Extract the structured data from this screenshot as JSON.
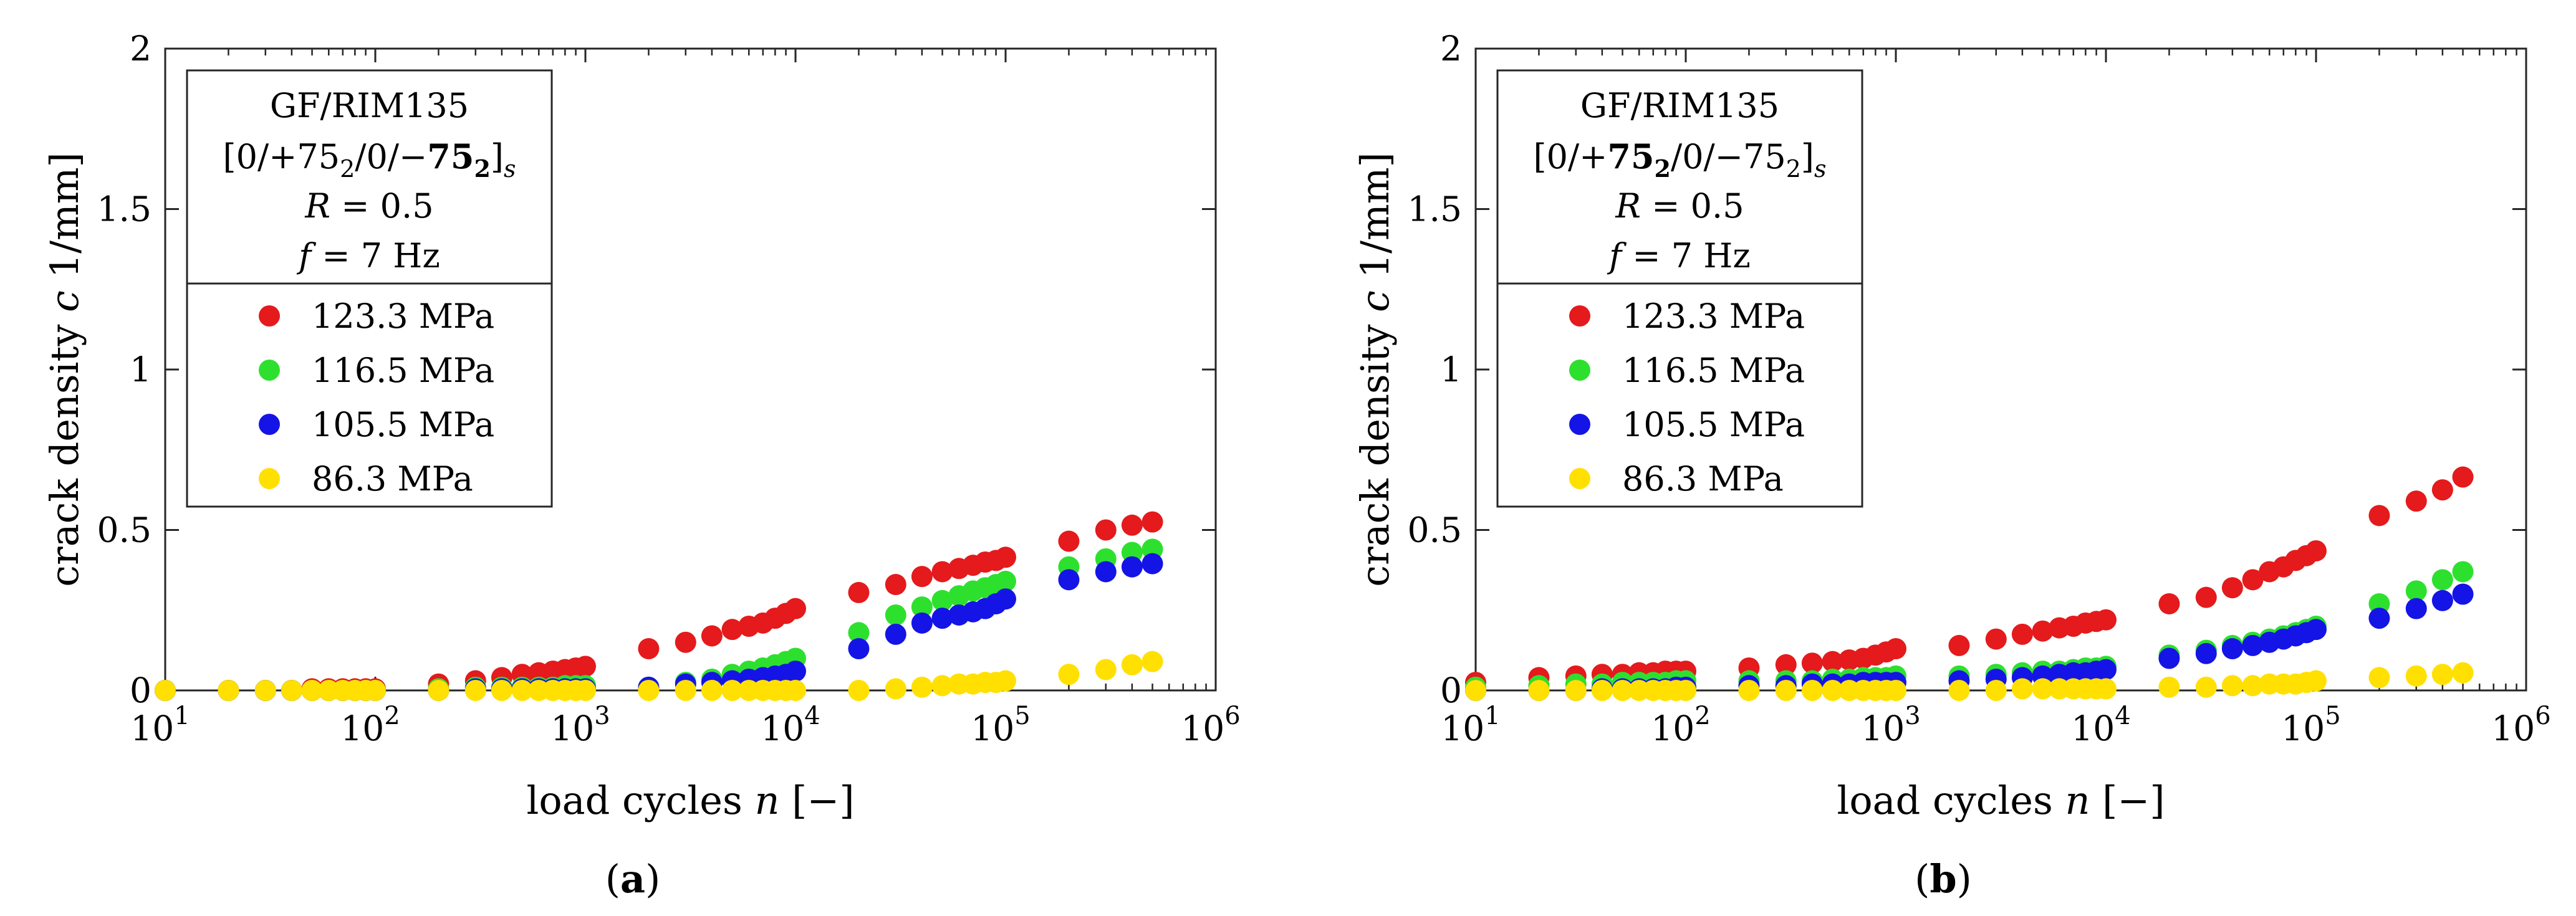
{
  "chart_data": [
    {
      "type": "scatter",
      "caption_letter": "a",
      "xscale": "log",
      "xlim": [
        10,
        1000000
      ],
      "ylim": [
        0,
        2
      ],
      "xticks": [
        10,
        100,
        1000,
        10000,
        100000,
        1000000
      ],
      "xtick_labels": [
        {
          "base": "10",
          "exp": "1"
        },
        {
          "base": "10",
          "exp": "2"
        },
        {
          "base": "10",
          "exp": "3"
        },
        {
          "base": "10",
          "exp": "4"
        },
        {
          "base": "10",
          "exp": "5"
        },
        {
          "base": "10",
          "exp": "6"
        }
      ],
      "yticks": [
        0,
        0.5,
        1,
        1.5,
        2
      ],
      "ytick_labels": [
        "0",
        "0.5",
        "1",
        "1.5",
        "2"
      ],
      "xlabel": {
        "prefix": "load cycles ",
        "var": "n",
        "suffix": " [−]"
      },
      "ylabel": {
        "prefix": "crack density ",
        "var": "c",
        "suffix": "  1/mm]"
      },
      "legend": {
        "placement": "top-left",
        "material": "GF/RIM135",
        "layup": {
          "open": "[0/+75",
          "sub1": "2",
          "mid": "/0/−",
          "bold": "75",
          "sub2": "2",
          "close": "]",
          "subs": "s",
          "bold_index": 2
        },
        "ratio": {
          "var": "R",
          "value": " = 0.5"
        },
        "freq": {
          "var": "f",
          "value": " = 7 Hz"
        }
      },
      "x": [
        10,
        20,
        30,
        40,
        50,
        60,
        70,
        80,
        90,
        100,
        200,
        300,
        400,
        500,
        600,
        700,
        800,
        900,
        1000,
        2000,
        3000,
        4000,
        5000,
        6000,
        7000,
        8000,
        9000,
        10000,
        20000,
        30000,
        40000,
        50000,
        60000,
        70000,
        80000,
        90000,
        100000,
        200000,
        300000,
        400000,
        500000
      ],
      "series": [
        {
          "name": "123.3 MPa",
          "color": "#e41a1c",
          "values": [
            0,
            0,
            0,
            0,
            0.005,
            0.005,
            0.005,
            0.005,
            0.005,
            0.005,
            0.02,
            0.03,
            0.04,
            0.05,
            0.055,
            0.06,
            0.065,
            0.07,
            0.075,
            0.13,
            0.15,
            0.17,
            0.19,
            0.2,
            0.21,
            0.225,
            0.24,
            0.255,
            0.305,
            0.33,
            0.355,
            0.37,
            0.38,
            0.39,
            0.4,
            0.405,
            0.415,
            0.465,
            0.5,
            0.515,
            0.525
          ]
        },
        {
          "name": "116.5 MPa",
          "color": "#2ee02e",
          "values": [
            0,
            0,
            0,
            0,
            0,
            0,
            0,
            0,
            0,
            0,
            0.005,
            0.01,
            0.01,
            0.01,
            0.01,
            0.01,
            0.015,
            0.015,
            0.015,
            0.01,
            0.025,
            0.035,
            0.05,
            0.06,
            0.07,
            0.08,
            0.09,
            0.1,
            0.18,
            0.235,
            0.26,
            0.28,
            0.295,
            0.31,
            0.32,
            0.33,
            0.34,
            0.385,
            0.41,
            0.43,
            0.44
          ]
        },
        {
          "name": "105.5 MPa",
          "color": "#1414e6",
          "values": [
            0,
            0,
            0,
            0,
            0,
            0,
            0,
            0,
            0,
            0,
            0,
            0.005,
            0.005,
            0.005,
            0.005,
            0.005,
            0.005,
            0.005,
            0.005,
            0.01,
            0.02,
            0.025,
            0.03,
            0.035,
            0.04,
            0.045,
            0.05,
            0.06,
            0.13,
            0.175,
            0.21,
            0.225,
            0.235,
            0.245,
            0.255,
            0.27,
            0.285,
            0.345,
            0.37,
            0.385,
            0.395
          ]
        },
        {
          "name": "86.3 MPa",
          "color": "#ffe000",
          "values": [
            0,
            0,
            0,
            0,
            0,
            0,
            0,
            0,
            0,
            0,
            0,
            0,
            0,
            0,
            0,
            0,
            0,
            0,
            0,
            0,
            0,
            0,
            0,
            0,
            0,
            0,
            0,
            0,
            0,
            0.005,
            0.01,
            0.015,
            0.02,
            0.02,
            0.025,
            0.025,
            0.03,
            0.05,
            0.065,
            0.08,
            0.09
          ]
        }
      ]
    },
    {
      "type": "scatter",
      "caption_letter": "b",
      "xscale": "log",
      "xlim": [
        10,
        1000000
      ],
      "ylim": [
        0,
        2
      ],
      "xticks": [
        10,
        100,
        1000,
        10000,
        100000,
        1000000
      ],
      "xtick_labels": [
        {
          "base": "10",
          "exp": "1"
        },
        {
          "base": "10",
          "exp": "2"
        },
        {
          "base": "10",
          "exp": "3"
        },
        {
          "base": "10",
          "exp": "4"
        },
        {
          "base": "10",
          "exp": "5"
        },
        {
          "base": "10",
          "exp": "6"
        }
      ],
      "yticks": [
        0,
        0.5,
        1,
        1.5,
        2
      ],
      "ytick_labels": [
        "0",
        "0.5",
        "1",
        "1.5",
        "2"
      ],
      "xlabel": {
        "prefix": "load cycles ",
        "var": "n",
        "suffix": " [−]"
      },
      "ylabel": {
        "prefix": "crack density ",
        "var": "c",
        "suffix": "  1/mm]"
      },
      "legend": {
        "placement": "top-left",
        "material": "GF/RIM135",
        "layup": {
          "open": "[0/+",
          "bold": "75",
          "sub2": "2",
          "mid": "/0/−75",
          "sub1": "2",
          "close": "]",
          "subs": "s",
          "bold_index": 1
        },
        "ratio": {
          "var": "R",
          "value": " = 0.5"
        },
        "freq": {
          "var": "f",
          "value": " = 7 Hz"
        }
      },
      "x": [
        10,
        20,
        30,
        40,
        50,
        60,
        70,
        80,
        90,
        100,
        200,
        300,
        400,
        500,
        600,
        700,
        800,
        900,
        1000,
        2000,
        3000,
        4000,
        5000,
        6000,
        7000,
        8000,
        9000,
        10000,
        20000,
        30000,
        40000,
        50000,
        60000,
        70000,
        80000,
        90000,
        100000,
        200000,
        300000,
        400000,
        500000
      ],
      "series": [
        {
          "name": "123.3 MPa",
          "color": "#e41a1c",
          "values": [
            0.025,
            0.04,
            0.045,
            0.05,
            0.05,
            0.055,
            0.055,
            0.06,
            0.06,
            0.06,
            0.07,
            0.08,
            0.085,
            0.09,
            0.095,
            0.1,
            0.11,
            0.12,
            0.13,
            0.14,
            0.16,
            0.175,
            0.185,
            0.195,
            0.2,
            0.21,
            0.215,
            0.22,
            0.27,
            0.29,
            0.32,
            0.345,
            0.37,
            0.385,
            0.405,
            0.42,
            0.435,
            0.545,
            0.59,
            0.625,
            0.665
          ]
        },
        {
          "name": "116.5 MPa",
          "color": "#2ee02e",
          "values": [
            0.01,
            0.015,
            0.02,
            0.02,
            0.025,
            0.025,
            0.025,
            0.025,
            0.03,
            0.03,
            0.03,
            0.03,
            0.03,
            0.035,
            0.035,
            0.04,
            0.04,
            0.04,
            0.045,
            0.045,
            0.05,
            0.055,
            0.06,
            0.06,
            0.065,
            0.07,
            0.07,
            0.075,
            0.11,
            0.125,
            0.14,
            0.15,
            0.16,
            0.17,
            0.18,
            0.19,
            0.2,
            0.27,
            0.31,
            0.345,
            0.37
          ]
        },
        {
          "name": "105.5 MPa",
          "color": "#1414e6",
          "values": [
            0,
            0,
            0,
            0.005,
            0.005,
            0.005,
            0.005,
            0.005,
            0.01,
            0.01,
            0.015,
            0.015,
            0.02,
            0.02,
            0.02,
            0.025,
            0.025,
            0.025,
            0.025,
            0.03,
            0.035,
            0.04,
            0.045,
            0.05,
            0.055,
            0.055,
            0.06,
            0.065,
            0.1,
            0.115,
            0.13,
            0.14,
            0.15,
            0.16,
            0.17,
            0.18,
            0.19,
            0.225,
            0.255,
            0.28,
            0.3
          ]
        },
        {
          "name": "86.3 MPa",
          "color": "#ffe000",
          "values": [
            0,
            0,
            0,
            0,
            0,
            0,
            0,
            0,
            0,
            0,
            0,
            0,
            0,
            0,
            0,
            0,
            0,
            0,
            0,
            0,
            0,
            0.005,
            0.005,
            0.005,
            0.005,
            0.005,
            0.005,
            0.005,
            0.01,
            0.01,
            0.015,
            0.015,
            0.02,
            0.02,
            0.02,
            0.025,
            0.03,
            0.04,
            0.045,
            0.05,
            0.055
          ]
        }
      ]
    }
  ]
}
